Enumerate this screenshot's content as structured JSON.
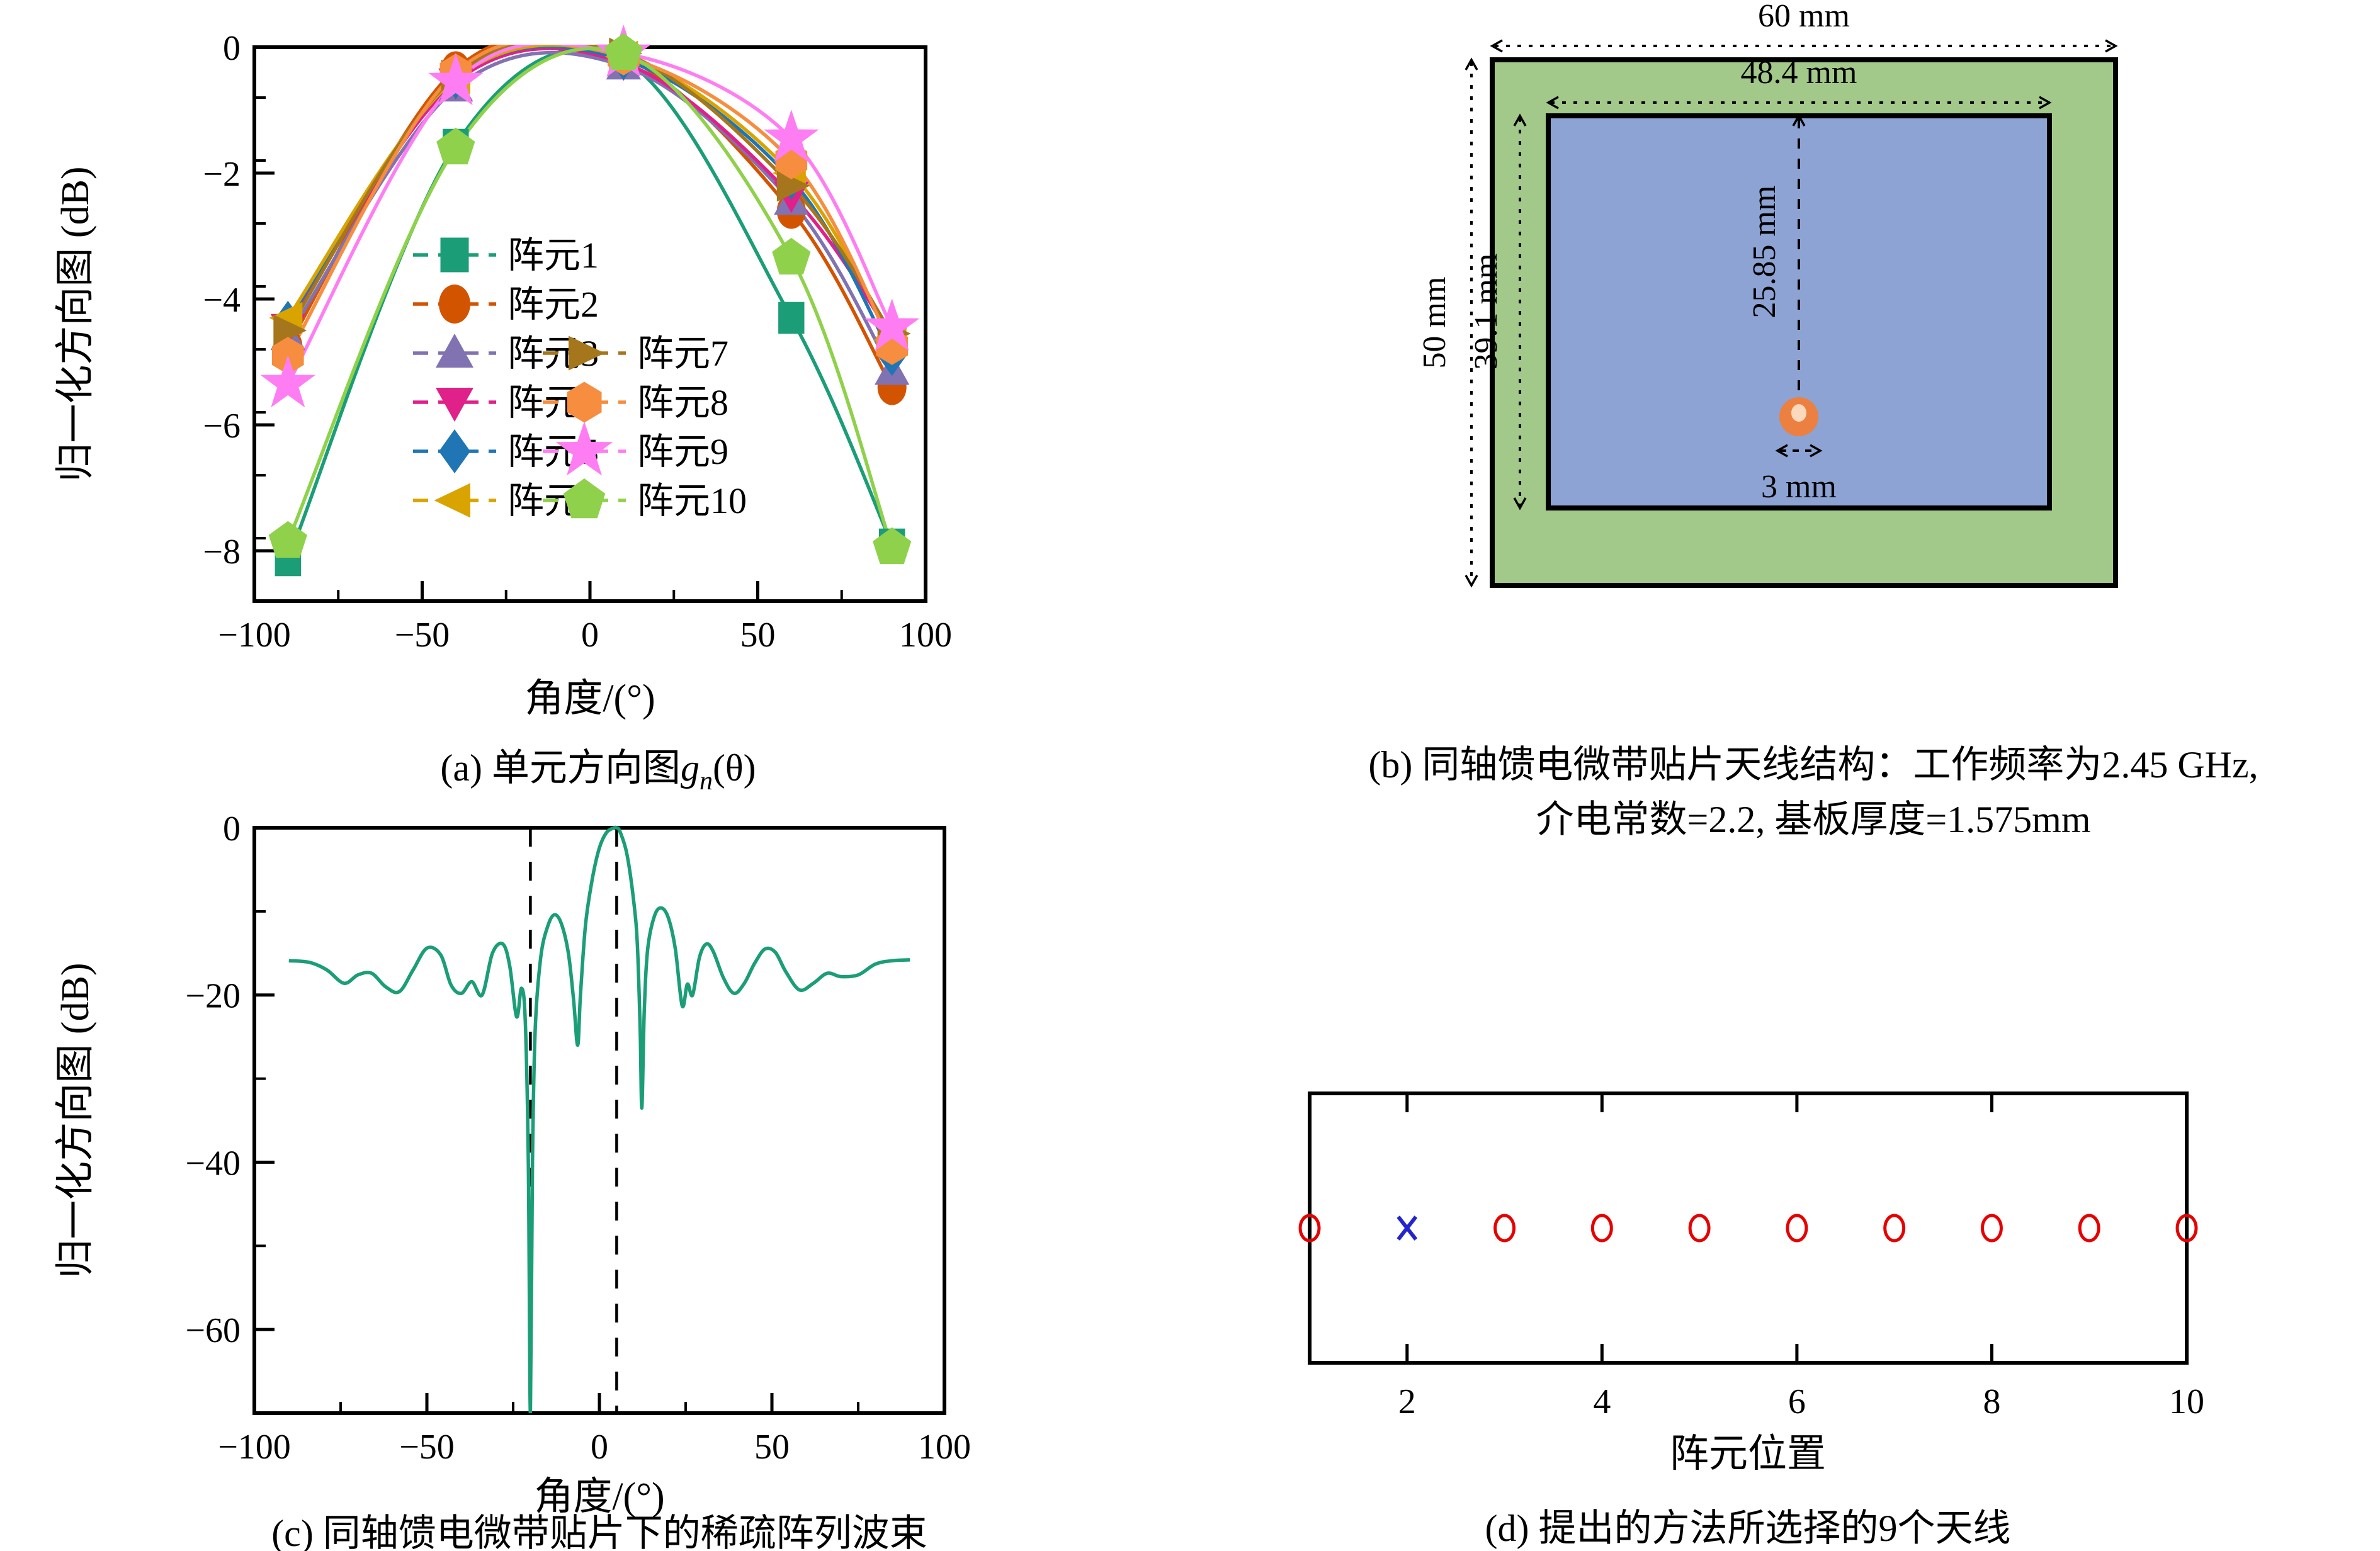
{
  "captions": {
    "a_prefix": "(a) 单元方向图",
    "a_g": "g",
    "a_sub": "n",
    "a_suffix": "(θ)",
    "b_line1": "(b) 同轴馈电微带贴片天线结构：工作频率为2.45 GHz,",
    "b_line2": "介电常数=2.2, 基板厚度=1.575mm",
    "c": "(c) 同轴馈电微带贴片下的稀疏阵列波束",
    "d": "(d) 提出的方法所选择的9个天线"
  },
  "chart_data": [
    {
      "id": "a",
      "type": "line",
      "xlabel": "角度/(°)",
      "ylabel": "归一化方向图 (dB)",
      "xlim": [
        -100,
        100
      ],
      "ylim": [
        -8.8,
        0
      ],
      "xticks": [
        -100,
        -50,
        0,
        50,
        100
      ],
      "xminor_step": 25,
      "yticks": [
        0,
        -2,
        -4,
        -6,
        -8
      ],
      "yminor_step": 1,
      "grid": false,
      "legend_position": "lower-center-inside",
      "x": [
        -90,
        -40,
        10,
        60,
        90
      ],
      "series": [
        {
          "name": "阵元1",
          "marker": "square",
          "color": "#1b9e77",
          "values": [
            -8.15,
            -1.55,
            -0.2,
            -4.3,
            -7.9
          ]
        },
        {
          "name": "阵元2",
          "marker": "circle",
          "color": "#d35400",
          "values": [
            -4.75,
            -0.35,
            -0.15,
            -2.6,
            -5.4
          ]
        },
        {
          "name": "阵元3",
          "marker": "triangle-up",
          "color": "#8172b2",
          "values": [
            -4.6,
            -0.65,
            -0.3,
            -2.45,
            -5.15
          ]
        },
        {
          "name": "阵元4",
          "marker": "triangle-down",
          "color": "#e0218a",
          "values": [
            -4.45,
            -0.55,
            -0.25,
            -2.35,
            -4.6
          ]
        },
        {
          "name": "阵元5",
          "marker": "diamond",
          "color": "#2076b4",
          "values": [
            -4.35,
            -0.5,
            -0.2,
            -2.1,
            -4.9
          ]
        },
        {
          "name": "阵元6",
          "marker": "triangle-left",
          "color": "#d9a300",
          "values": [
            -4.3,
            -0.5,
            -0.15,
            -2.0,
            -4.65
          ]
        },
        {
          "name": "阵元7",
          "marker": "triangle-right",
          "color": "#a6761d",
          "values": [
            -4.5,
            -0.45,
            -0.1,
            -2.2,
            -4.55
          ]
        },
        {
          "name": "阵元8",
          "marker": "hexagon",
          "color": "#f68d3f",
          "values": [
            -4.9,
            -0.4,
            -0.15,
            -1.8,
            -4.75
          ]
        },
        {
          "name": "阵元9",
          "marker": "star",
          "color": "#ff7df2",
          "values": [
            -5.35,
            -0.55,
            -0.1,
            -1.45,
            -4.45
          ]
        },
        {
          "name": "阵元10",
          "marker": "pentagon",
          "color": "#8fd14b",
          "values": [
            -7.85,
            -1.6,
            -0.1,
            -3.35,
            -7.95
          ]
        }
      ]
    },
    {
      "id": "c",
      "type": "line",
      "xlabel": "角度/(°)",
      "ylabel": "归一化方向图 (dB)",
      "xlim": [
        -100,
        100
      ],
      "ylim": [
        -70,
        0
      ],
      "xticks": [
        -100,
        -50,
        0,
        50,
        100
      ],
      "xminor_step": 25,
      "yticks": [
        0,
        -20,
        -40,
        -60
      ],
      "yminor_step": 10,
      "grid": false,
      "line_color": "#1b9e77",
      "dashed_vlines": [
        -20,
        5
      ],
      "curve": [
        [
          -90,
          -15.9
        ],
        [
          -84,
          -16.1
        ],
        [
          -79,
          -17.0
        ],
        [
          -74,
          -18.6
        ],
        [
          -70,
          -17.6
        ],
        [
          -66,
          -17.4
        ],
        [
          -62,
          -19.0
        ],
        [
          -58,
          -19.6
        ],
        [
          -54,
          -17.0
        ],
        [
          -50,
          -14.4
        ],
        [
          -46,
          -15.2
        ],
        [
          -43,
          -18.8
        ],
        [
          -40,
          -19.8
        ],
        [
          -37,
          -18.4
        ],
        [
          -34,
          -20.0
        ],
        [
          -31,
          -15.0
        ],
        [
          -28,
          -13.9
        ],
        [
          -26,
          -16.5
        ],
        [
          -24,
          -22.6
        ],
        [
          -22.6,
          -19.2
        ],
        [
          -21.5,
          -23.0
        ],
        [
          -20.6,
          -40
        ],
        [
          -20,
          -70
        ],
        [
          -19.4,
          -40
        ],
        [
          -18.6,
          -24
        ],
        [
          -17,
          -15.5
        ],
        [
          -15,
          -11.8
        ],
        [
          -13,
          -10.4
        ],
        [
          -11,
          -11.5
        ],
        [
          -9,
          -15.0
        ],
        [
          -7.5,
          -20.5
        ],
        [
          -6.3,
          -26.0
        ],
        [
          -5.5,
          -20.0
        ],
        [
          -4,
          -11.5
        ],
        [
          -2,
          -6.0
        ],
        [
          0,
          -2.4
        ],
        [
          2,
          -0.6
        ],
        [
          4,
          -0.05
        ],
        [
          5,
          0
        ],
        [
          6,
          -0.5
        ],
        [
          8,
          -3.2
        ],
        [
          10,
          -9.0
        ],
        [
          11,
          -14
        ],
        [
          11.8,
          -24
        ],
        [
          12.3,
          -33.5
        ],
        [
          13,
          -22
        ],
        [
          14,
          -14.5
        ],
        [
          16,
          -10.5
        ],
        [
          18,
          -9.6
        ],
        [
          20,
          -10.8
        ],
        [
          22,
          -14.5
        ],
        [
          24,
          -21.3
        ],
        [
          25.5,
          -18.7
        ],
        [
          27,
          -20.0
        ],
        [
          29,
          -15.5
        ],
        [
          31,
          -13.9
        ],
        [
          33,
          -14.8
        ],
        [
          36,
          -18.0
        ],
        [
          39,
          -19.8
        ],
        [
          42,
          -18.6
        ],
        [
          45,
          -16.2
        ],
        [
          48,
          -14.5
        ],
        [
          51,
          -14.9
        ],
        [
          54,
          -17.2
        ],
        [
          58,
          -19.4
        ],
        [
          62,
          -18.6
        ],
        [
          66,
          -17.4
        ],
        [
          70,
          -17.8
        ],
        [
          75,
          -17.6
        ],
        [
          80,
          -16.3
        ],
        [
          85,
          -15.9
        ],
        [
          90,
          -15.8
        ]
      ]
    },
    {
      "id": "d",
      "type": "scatter",
      "xlabel": "阵元位置",
      "xlim": [
        1,
        10
      ],
      "xticks": [
        2,
        4,
        6,
        8,
        10
      ],
      "selected_positions": [
        1,
        3,
        4,
        5,
        6,
        7,
        8,
        9,
        10
      ],
      "unselected_positions": [
        2
      ],
      "circle_color": "#e60000",
      "cross_color": "#2424cc"
    }
  ],
  "diagram": {
    "substrate_width_label": "60 mm",
    "substrate_height_label": "50 mm",
    "patch_width_label": "48.4 mm",
    "patch_height_label": "39.1 mm",
    "feed_offset_label": "25.85 mm",
    "feed_diameter_label": "3 mm",
    "substrate_color": "#a2c98a",
    "patch_color": "#8ca3d3",
    "feed_outer_color": "#ec8040",
    "feed_inner_color": "#fcd9bc",
    "border_color": "#000000"
  }
}
